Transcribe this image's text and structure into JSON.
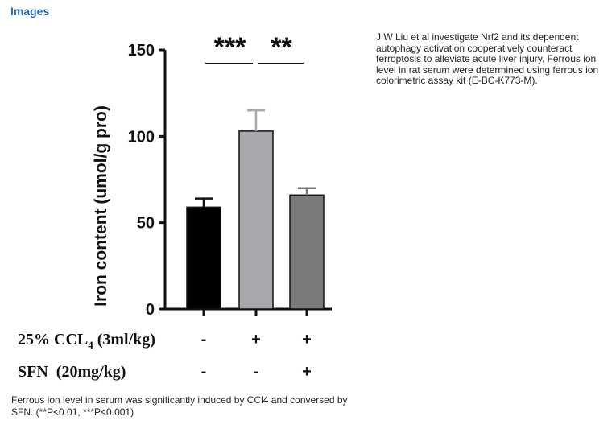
{
  "header": {
    "title": "Images"
  },
  "description": "J W Liu et al investigate Nrf2 and its dependent autophagy activation cooperatively counteract ferroptosis to alleviate acute liver injury. Ferrous ion level in rat serum were determined using ferrous ion colorimetric assay kit (E-BC-K773-M).",
  "caption": "Ferrous ion level in serum was significantly induced by CCl4 and conversed by SFN. (**P<0.01, ***P<0.001)",
  "chart_data": {
    "type": "bar",
    "ylabel": "Iron content  (umol/g pro)",
    "ylim": [
      0,
      150
    ],
    "yticks": [
      "0",
      "50",
      "100",
      "150"
    ],
    "categories": [
      "-/-",
      "+/-",
      "+/+"
    ],
    "values": [
      59,
      103,
      66
    ],
    "errors": [
      5,
      12,
      4
    ],
    "colors": [
      "#000000",
      "#a8a8ac",
      "#7a7a7a"
    ],
    "conditions": [
      {
        "label": "25% CCL",
        "subscript": "4",
        "suffix": " (3ml/kg)",
        "marks": [
          "-",
          "+",
          "+"
        ]
      },
      {
        "label": "SFN  (20mg/kg)",
        "marks": [
          "-",
          "-",
          "+"
        ]
      }
    ],
    "significance": [
      {
        "text": "***",
        "from": 0,
        "to": 1
      },
      {
        "text": "**",
        "from": 1,
        "to": 2
      }
    ]
  }
}
